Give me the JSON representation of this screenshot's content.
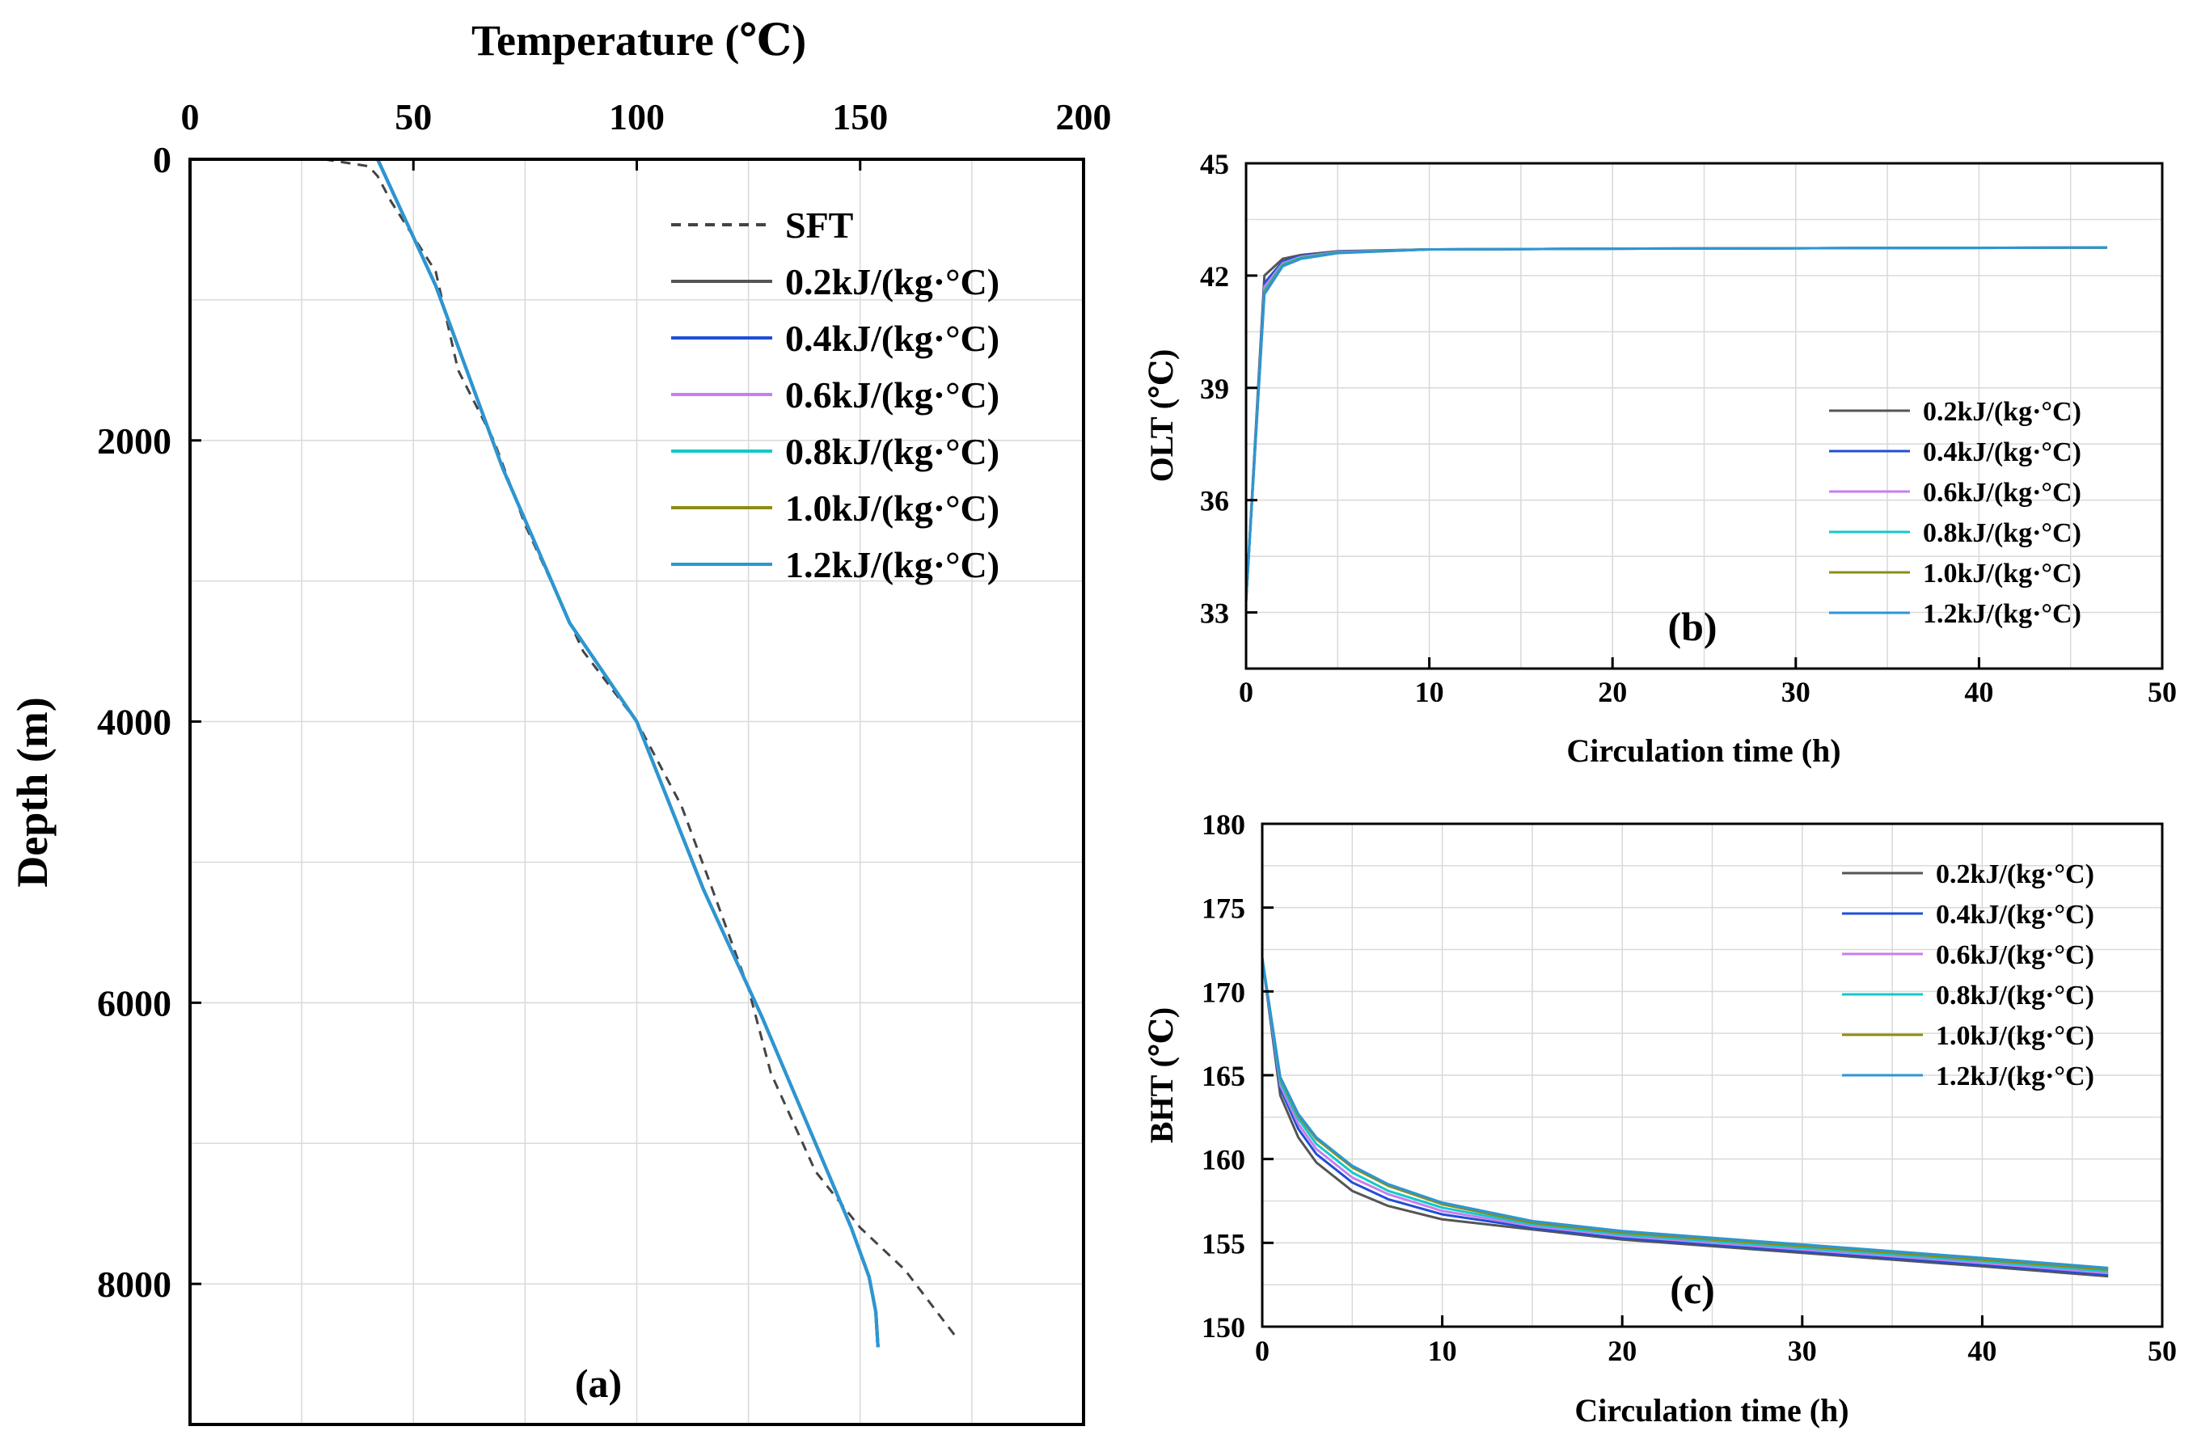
{
  "figure": {
    "panel_labels": [
      "(a)",
      "(b)",
      "(c)"
    ]
  },
  "series_styles": [
    {
      "name": "0.2kJ/(kg·°C)",
      "color": "#555555"
    },
    {
      "name": "0.4kJ/(kg·°C)",
      "color": "#1f4fd6"
    },
    {
      "name": "0.6kJ/(kg·°C)",
      "color": "#c77ef0"
    },
    {
      "name": "0.8kJ/(kg·°C)",
      "color": "#12c9c9"
    },
    {
      "name": "1.0kJ/(kg·°C)",
      "color": "#8c8c16"
    },
    {
      "name": "1.2kJ/(kg·°C)",
      "color": "#2b96d6"
    }
  ],
  "sft_color": "#444444",
  "chart_data": [
    {
      "id": "a",
      "type": "line",
      "title": "",
      "xlabel": "Temperature (℃)",
      "ylabel": "Depth (m)",
      "xlim": [
        0,
        200
      ],
      "ylim": [
        0,
        9000
      ],
      "xticks": [
        0,
        50,
        100,
        150,
        200
      ],
      "yticks": [
        0,
        2000,
        4000,
        6000,
        8000
      ],
      "legend": "top-right",
      "sft": {
        "name": "SFT",
        "x": [
          30,
          40,
          42,
          45,
          55,
          60,
          68,
          75,
          88,
          100,
          110,
          117,
          125,
          130,
          140,
          150,
          160,
          172
        ],
        "y": [
          0,
          50,
          120,
          300,
          800,
          1500,
          2000,
          2600,
          3500,
          4000,
          4600,
          5200,
          5900,
          6500,
          7200,
          7600,
          7900,
          8400
        ]
      },
      "series": [
        {
          "name": "0.2kJ/(kg·°C)",
          "x": [
            42,
            55,
            70,
            85,
            100,
            115,
            128,
            140,
            148,
            152,
            153.5,
            154
          ],
          "y": [
            0,
            900,
            2200,
            3300,
            4000,
            5200,
            6100,
            7000,
            7600,
            7950,
            8200,
            8450
          ]
        },
        {
          "name": "0.4kJ/(kg·°C)",
          "x": [
            42,
            55,
            70,
            85,
            100,
            115,
            128,
            140,
            148,
            152,
            153.5,
            154
          ],
          "y": [
            0,
            900,
            2200,
            3300,
            4000,
            5200,
            6100,
            7000,
            7600,
            7950,
            8200,
            8450
          ]
        },
        {
          "name": "0.6kJ/(kg·°C)",
          "x": [
            42,
            55,
            70,
            85,
            100,
            115,
            128,
            140,
            148,
            152,
            153.5,
            154
          ],
          "y": [
            0,
            900,
            2200,
            3300,
            4000,
            5200,
            6100,
            7000,
            7600,
            7950,
            8200,
            8450
          ]
        },
        {
          "name": "0.8kJ/(kg·°C)",
          "x": [
            42,
            55,
            70,
            85,
            100,
            115,
            128,
            140,
            148,
            152,
            153.5,
            154
          ],
          "y": [
            0,
            900,
            2200,
            3300,
            4000,
            5200,
            6100,
            7000,
            7600,
            7950,
            8200,
            8450
          ]
        },
        {
          "name": "1.0kJ/(kg·°C)",
          "x": [
            42,
            55,
            70,
            85,
            100,
            115,
            128,
            140,
            148,
            152,
            153.5,
            154
          ],
          "y": [
            0,
            900,
            2200,
            3300,
            4000,
            5200,
            6100,
            7000,
            7600,
            7950,
            8200,
            8450
          ]
        },
        {
          "name": "1.2kJ/(kg·°C)",
          "x": [
            42,
            55,
            70,
            85,
            100,
            115,
            128,
            140,
            148,
            152,
            153.5,
            154
          ],
          "y": [
            0,
            900,
            2200,
            3300,
            4000,
            5200,
            6100,
            7000,
            7600,
            7950,
            8200,
            8450
          ]
        }
      ]
    },
    {
      "id": "b",
      "type": "line",
      "title": "",
      "xlabel": "Circulation time (h)",
      "ylabel": "OLT (℃)",
      "xlim": [
        0,
        50
      ],
      "ylim": [
        31.5,
        45
      ],
      "xticks": [
        0,
        10,
        20,
        30,
        40,
        50
      ],
      "yticks": [
        33,
        36,
        39,
        42,
        45
      ],
      "legend": "right",
      "series": [
        {
          "name": "0.2kJ/(kg·°C)",
          "x": [
            0,
            1,
            2,
            3,
            5,
            10,
            20,
            47
          ],
          "y": [
            33.3,
            42.0,
            42.45,
            42.55,
            42.65,
            42.7,
            42.72,
            42.75
          ]
        },
        {
          "name": "0.4kJ/(kg·°C)",
          "x": [
            0,
            1,
            2,
            3,
            5,
            10,
            20,
            47
          ],
          "y": [
            33.3,
            41.8,
            42.38,
            42.52,
            42.64,
            42.7,
            42.72,
            42.75
          ]
        },
        {
          "name": "0.6kJ/(kg·°C)",
          "x": [
            0,
            1,
            2,
            3,
            5,
            10,
            20,
            47
          ],
          "y": [
            33.3,
            41.7,
            42.33,
            42.5,
            42.63,
            42.7,
            42.72,
            42.75
          ]
        },
        {
          "name": "0.8kJ/(kg·°C)",
          "x": [
            0,
            1,
            2,
            3,
            5,
            10,
            20,
            47
          ],
          "y": [
            33.3,
            41.6,
            42.3,
            42.48,
            42.62,
            42.7,
            42.72,
            42.75
          ]
        },
        {
          "name": "1.0kJ/(kg·°C)",
          "x": [
            0,
            1,
            2,
            3,
            5,
            10,
            20,
            47
          ],
          "y": [
            33.3,
            41.55,
            42.27,
            42.46,
            42.61,
            42.7,
            42.72,
            42.75
          ]
        },
        {
          "name": "1.2kJ/(kg·°C)",
          "x": [
            0,
            1,
            2,
            3,
            5,
            10,
            20,
            47
          ],
          "y": [
            33.3,
            41.5,
            42.25,
            42.45,
            42.6,
            42.7,
            42.72,
            42.75
          ]
        }
      ]
    },
    {
      "id": "c",
      "type": "line",
      "title": "",
      "xlabel": "Circulation time (h)",
      "ylabel": "BHT (℃)",
      "xlim": [
        0,
        50
      ],
      "ylim": [
        150,
        180
      ],
      "xticks": [
        0,
        10,
        20,
        30,
        40,
        50
      ],
      "yticks": [
        150,
        155,
        160,
        165,
        170,
        175,
        180
      ],
      "legend": "top-right",
      "series": [
        {
          "name": "0.2kJ/(kg·°C)",
          "x": [
            0,
            1,
            2,
            3,
            5,
            7,
            10,
            15,
            20,
            30,
            40,
            47
          ],
          "y": [
            172,
            163.8,
            161.3,
            159.8,
            158.1,
            157.2,
            156.4,
            155.8,
            155.2,
            154.4,
            153.6,
            153.0
          ]
        },
        {
          "name": "0.4kJ/(kg·°C)",
          "x": [
            0,
            1,
            2,
            3,
            5,
            7,
            10,
            15,
            20,
            30,
            40,
            47
          ],
          "y": [
            172,
            164.2,
            161.8,
            160.3,
            158.6,
            157.6,
            156.7,
            155.9,
            155.3,
            154.5,
            153.7,
            153.1
          ]
        },
        {
          "name": "0.6kJ/(kg·°C)",
          "x": [
            0,
            1,
            2,
            3,
            5,
            7,
            10,
            15,
            20,
            30,
            40,
            47
          ],
          "y": [
            172,
            164.4,
            162.1,
            160.6,
            158.9,
            157.9,
            156.9,
            156.0,
            155.4,
            154.6,
            153.8,
            153.2
          ]
        },
        {
          "name": "0.8kJ/(kg·°C)",
          "x": [
            0,
            1,
            2,
            3,
            5,
            7,
            10,
            15,
            20,
            30,
            40,
            47
          ],
          "y": [
            172,
            164.6,
            162.4,
            160.9,
            159.2,
            158.1,
            157.1,
            156.1,
            155.5,
            154.7,
            153.9,
            153.3
          ]
        },
        {
          "name": "1.0kJ/(kg·°C)",
          "x": [
            0,
            1,
            2,
            3,
            5,
            7,
            10,
            15,
            20,
            30,
            40,
            47
          ],
          "y": [
            172,
            164.8,
            162.6,
            161.2,
            159.5,
            158.4,
            157.3,
            156.2,
            155.6,
            154.8,
            154.0,
            153.4
          ]
        },
        {
          "name": "1.2kJ/(kg·°C)",
          "x": [
            0,
            1,
            2,
            3,
            5,
            7,
            10,
            15,
            20,
            30,
            40,
            47
          ],
          "y": [
            172,
            164.9,
            162.7,
            161.3,
            159.6,
            158.5,
            157.4,
            156.3,
            155.7,
            154.9,
            154.1,
            153.5
          ]
        }
      ]
    }
  ]
}
